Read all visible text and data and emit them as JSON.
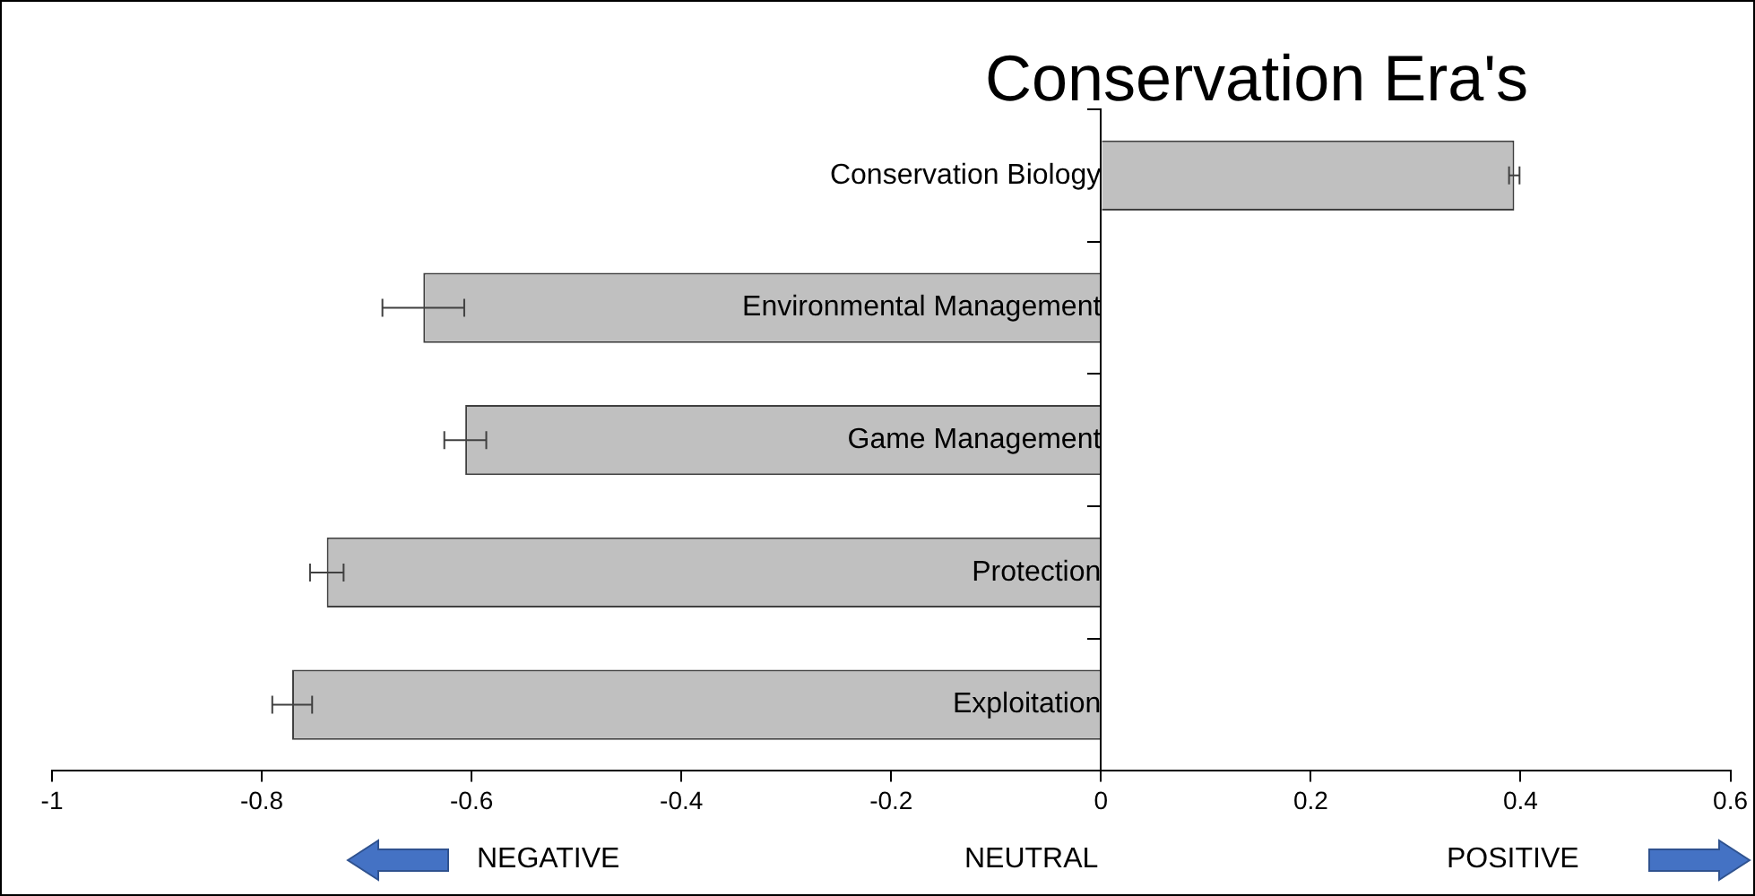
{
  "chart_data": {
    "type": "bar",
    "orientation": "horizontal",
    "title": "Conservation Era's",
    "categories": [
      "Conservation Biology",
      "Environmental Management",
      "Game Management",
      "Protection",
      "Exploitation"
    ],
    "values": [
      0.394,
      -0.646,
      -0.606,
      -0.738,
      -0.771
    ],
    "errors": [
      0.005,
      0.039,
      0.02,
      0.016,
      0.019
    ],
    "color": "#c0c0c0",
    "xlim": [
      -1,
      0.6
    ],
    "xticks": [
      -1,
      -0.8,
      -0.6,
      -0.4,
      -0.2,
      0,
      0.2,
      0.4,
      0.6
    ],
    "grid": false,
    "legend": false,
    "annotations": [
      "NEGATIVE",
      "NEUTRAL",
      "POSITIVE"
    ]
  }
}
